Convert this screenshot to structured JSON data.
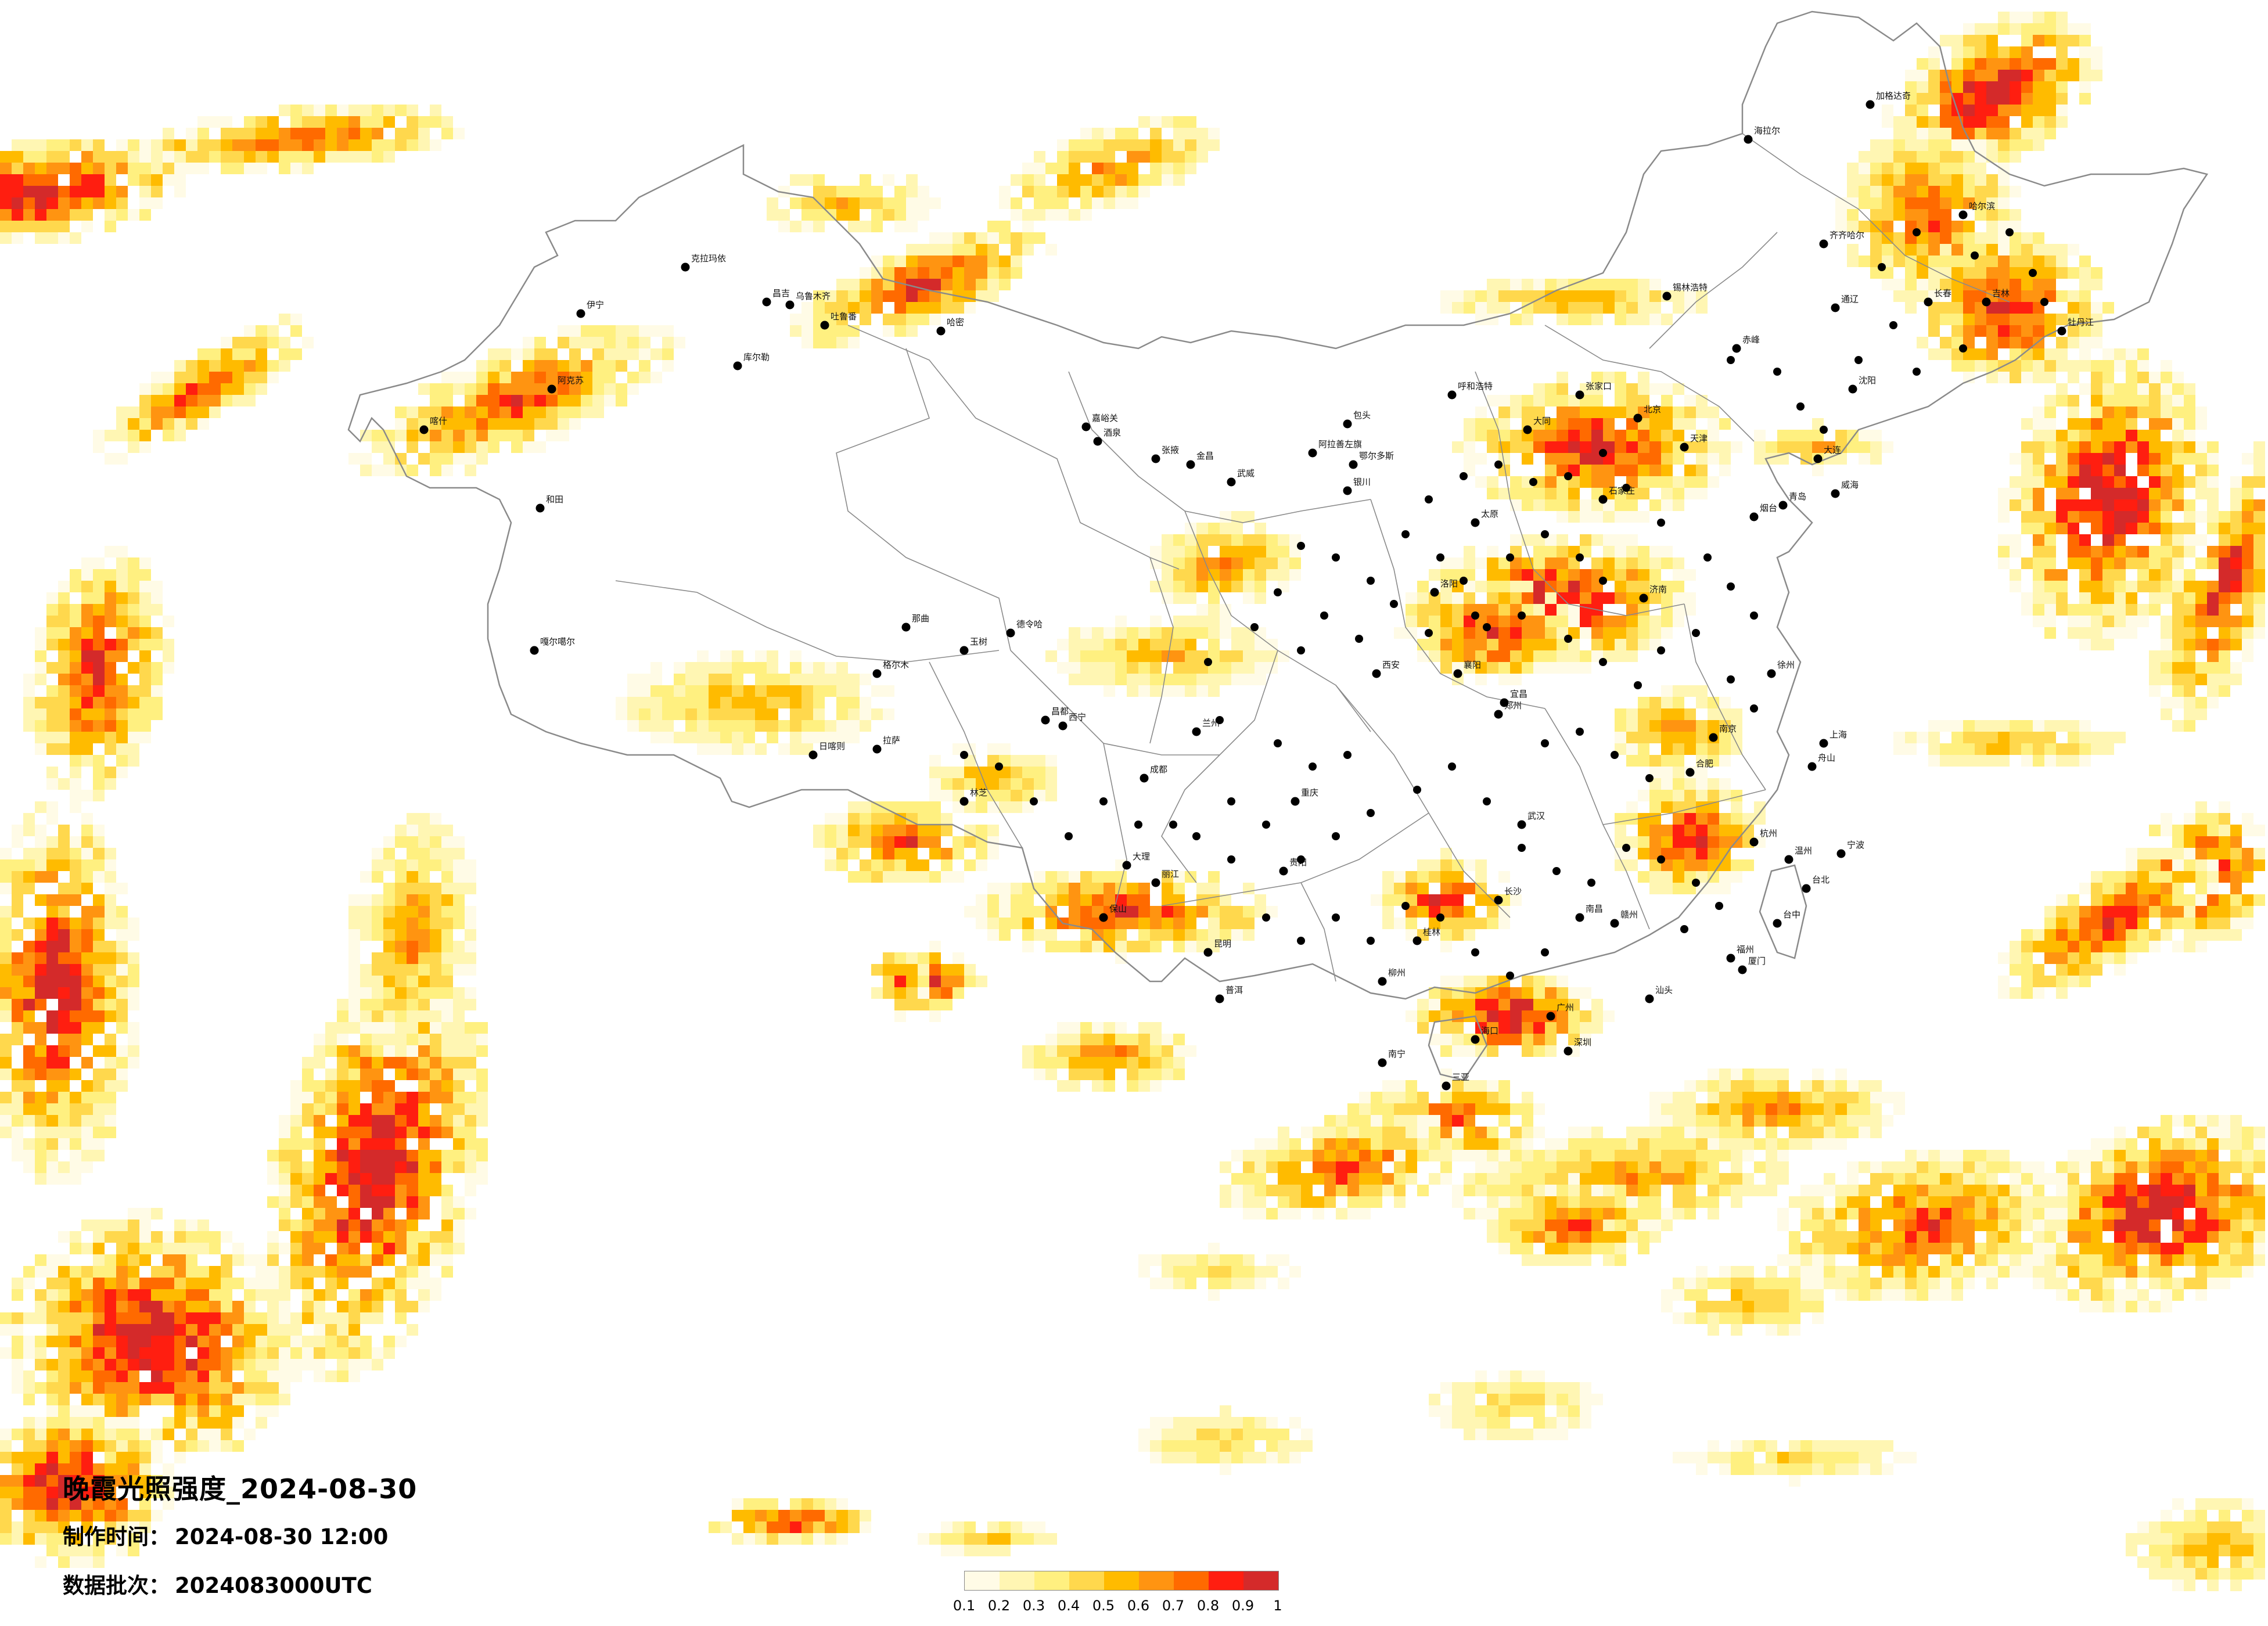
{
  "title": "晚霞光照强度_2024-08-30",
  "made_time": {
    "label": "制作时间：",
    "value": "2024-08-30 12:00"
  },
  "data_batch": {
    "label": "数据批次：",
    "value": "2024083000UTC"
  },
  "legend": {
    "colors": [
      "#fffbe6",
      "#fff6b3",
      "#fff080",
      "#ffd84d",
      "#ffbb00",
      "#ff9411",
      "#ff6a00",
      "#ff1e10",
      "#d42a2a"
    ],
    "ticks": [
      "0.1",
      "0.2",
      "0.3",
      "0.4",
      "0.5",
      "0.6",
      "0.7",
      "0.8",
      "0.9",
      "1"
    ]
  },
  "map": {
    "border_color": "#8a8a8a",
    "city_dot_color": "#000000",
    "cities": [
      {
        "name": "克拉玛依"
      },
      {
        "name": "伊宁"
      },
      {
        "name": "昌吉"
      },
      {
        "name": "乌鲁木齐"
      },
      {
        "name": "吐鲁番"
      },
      {
        "name": "哈密"
      },
      {
        "name": "库尔勒"
      },
      {
        "name": "阿克苏"
      },
      {
        "name": "和田"
      },
      {
        "name": "喀什"
      },
      {
        "name": "嘎尔噶尔"
      },
      {
        "name": "格尔木"
      },
      {
        "name": "德令哈"
      },
      {
        "name": "嘉峪关"
      },
      {
        "name": "酒泉"
      },
      {
        "name": "张掖"
      },
      {
        "name": "金昌"
      },
      {
        "name": "武威"
      },
      {
        "name": "阿拉善左旗"
      },
      {
        "name": "银川"
      },
      {
        "name": "海拉尔"
      },
      {
        "name": "锡林浩特"
      },
      {
        "name": "呼和浩特"
      },
      {
        "name": "张家口"
      },
      {
        "name": "赤峰"
      },
      {
        "name": "加格达奇"
      },
      {
        "name": "齐齐哈尔"
      },
      {
        "name": "哈尔滨"
      },
      {
        "name": "牡丹江"
      },
      {
        "name": "长春"
      },
      {
        "name": "吉林"
      },
      {
        "name": "沈阳"
      },
      {
        "name": "大连"
      },
      {
        "name": "通辽"
      },
      {
        "name": "北京"
      },
      {
        "name": "天津"
      },
      {
        "name": "石家庄"
      },
      {
        "name": "太原"
      },
      {
        "name": "西宁"
      },
      {
        "name": "兰州"
      },
      {
        "name": "西安"
      },
      {
        "name": "郑州"
      },
      {
        "name": "济南"
      },
      {
        "name": "青岛"
      },
      {
        "name": "威海"
      },
      {
        "name": "南京"
      },
      {
        "name": "上海"
      },
      {
        "name": "合肥"
      },
      {
        "name": "杭州"
      },
      {
        "name": "宁波"
      },
      {
        "name": "武汉"
      },
      {
        "name": "长沙"
      },
      {
        "name": "南昌"
      },
      {
        "name": "福州"
      },
      {
        "name": "台北"
      },
      {
        "name": "台中"
      },
      {
        "name": "广州"
      },
      {
        "name": "深圳"
      },
      {
        "name": "南宁"
      },
      {
        "name": "海口"
      },
      {
        "name": "三亚"
      },
      {
        "name": "昆明"
      },
      {
        "name": "贵阳"
      },
      {
        "name": "成都"
      },
      {
        "name": "重庆"
      },
      {
        "name": "拉萨"
      },
      {
        "name": "日喀则"
      },
      {
        "name": "昌都"
      },
      {
        "name": "林芝"
      },
      {
        "name": "那曲"
      },
      {
        "name": "玉树"
      },
      {
        "name": "大理"
      },
      {
        "name": "丽江"
      },
      {
        "name": "保山"
      },
      {
        "name": "普洱"
      },
      {
        "name": "桂林"
      },
      {
        "name": "柳州"
      },
      {
        "name": "赣州"
      },
      {
        "name": "厦门"
      },
      {
        "name": "汕头"
      },
      {
        "name": "宜昌"
      },
      {
        "name": "襄阳"
      },
      {
        "name": "洛阳"
      },
      {
        "name": "包头"
      },
      {
        "name": "鄂尔多斯"
      },
      {
        "name": "大同"
      },
      {
        "name": "烟台"
      },
      {
        "name": "徐州"
      },
      {
        "name": "温州"
      },
      {
        "name": "舟山"
      }
    ]
  }
}
